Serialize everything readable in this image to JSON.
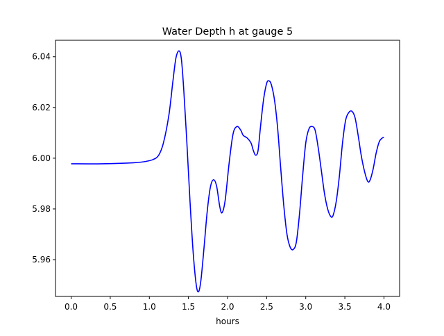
{
  "chart_data": {
    "type": "line",
    "title": "Water Depth h at gauge 5",
    "xlabel": "hours",
    "ylabel": "",
    "xlim": [
      -0.2,
      4.2
    ],
    "ylim": [
      5.9455,
      6.0465
    ],
    "xticks": [
      0.0,
      0.5,
      1.0,
      1.5,
      2.0,
      2.5,
      3.0,
      3.5,
      4.0
    ],
    "xtick_labels": [
      "0.0",
      "0.5",
      "1.0",
      "1.5",
      "2.0",
      "2.5",
      "3.0",
      "3.5",
      "4.0"
    ],
    "yticks": [
      5.96,
      5.98,
      6.0,
      6.02,
      6.04
    ],
    "ytick_labels": [
      "5.96",
      "5.98",
      "6.00",
      "6.02",
      "6.04"
    ],
    "grid": false,
    "legend": "none",
    "series": [
      {
        "color": "#0000ff",
        "points": [
          [
            0.0,
            5.9978
          ],
          [
            0.4,
            5.9978
          ],
          [
            0.8,
            5.9982
          ],
          [
            0.95,
            5.9987
          ],
          [
            1.05,
            5.9995
          ],
          [
            1.12,
            6.0012
          ],
          [
            1.18,
            6.006
          ],
          [
            1.25,
            6.017
          ],
          [
            1.3,
            6.03
          ],
          [
            1.34,
            6.0395
          ],
          [
            1.38,
            6.0423
          ],
          [
            1.41,
            6.039
          ],
          [
            1.44,
            6.027
          ],
          [
            1.48,
            6.006
          ],
          [
            1.52,
            5.983
          ],
          [
            1.56,
            5.963
          ],
          [
            1.6,
            5.95
          ],
          [
            1.63,
            5.9474
          ],
          [
            1.66,
            5.952
          ],
          [
            1.7,
            5.965
          ],
          [
            1.74,
            5.979
          ],
          [
            1.78,
            5.9885
          ],
          [
            1.82,
            5.9915
          ],
          [
            1.86,
            5.989
          ],
          [
            1.9,
            5.981
          ],
          [
            1.93,
            5.9785
          ],
          [
            1.97,
            5.9835
          ],
          [
            2.02,
            5.998
          ],
          [
            2.07,
            6.0095
          ],
          [
            2.12,
            6.0125
          ],
          [
            2.17,
            6.011
          ],
          [
            2.2,
            6.009
          ],
          [
            2.25,
            6.008
          ],
          [
            2.3,
            6.006
          ],
          [
            2.33,
            6.003
          ],
          [
            2.36,
            6.0012
          ],
          [
            2.39,
            6.003
          ],
          [
            2.42,
            6.012
          ],
          [
            2.46,
            6.023
          ],
          [
            2.5,
            6.0295
          ],
          [
            2.53,
            6.0305
          ],
          [
            2.56,
            6.029
          ],
          [
            2.6,
            6.023
          ],
          [
            2.64,
            6.012
          ],
          [
            2.68,
            5.996
          ],
          [
            2.72,
            5.981
          ],
          [
            2.76,
            5.97
          ],
          [
            2.8,
            5.965
          ],
          [
            2.84,
            5.964
          ],
          [
            2.88,
            5.967
          ],
          [
            2.92,
            5.978
          ],
          [
            2.96,
            5.993
          ],
          [
            3.0,
            6.006
          ],
          [
            3.04,
            6.0115
          ],
          [
            3.08,
            6.0125
          ],
          [
            3.12,
            6.011
          ],
          [
            3.16,
            6.004
          ],
          [
            3.2,
            5.995
          ],
          [
            3.24,
            5.986
          ],
          [
            3.28,
            5.98
          ],
          [
            3.32,
            5.977
          ],
          [
            3.35,
            5.9775
          ],
          [
            3.39,
            5.983
          ],
          [
            3.43,
            5.993
          ],
          [
            3.47,
            6.006
          ],
          [
            3.51,
            6.015
          ],
          [
            3.55,
            6.018
          ],
          [
            3.59,
            6.0185
          ],
          [
            3.63,
            6.016
          ],
          [
            3.67,
            6.009
          ],
          [
            3.71,
            6.001
          ],
          [
            3.75,
            5.995
          ],
          [
            3.79,
            5.991
          ],
          [
            3.82,
            5.9912
          ],
          [
            3.86,
            5.9955
          ],
          [
            3.9,
            6.002
          ],
          [
            3.94,
            6.0065
          ],
          [
            3.98,
            6.008
          ],
          [
            4.0,
            6.0082
          ]
        ]
      }
    ]
  }
}
